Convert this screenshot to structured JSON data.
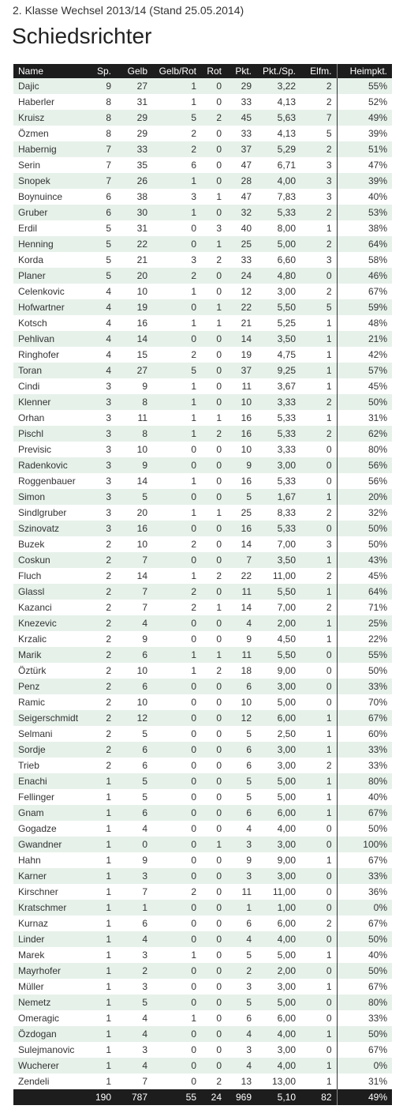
{
  "header": {
    "subtitle": "2. Klasse Wechsel 2013/14 (Stand 25.05.2014)",
    "title": "Schiedsrichter"
  },
  "table": {
    "columns": [
      "Name",
      "Sp.",
      "Gelb",
      "Gelb/Rot",
      "Rot",
      "Pkt.",
      "Pkt./Sp.",
      "Elfm.",
      "Heimpkt."
    ],
    "rows": [
      [
        "Dajic",
        "9",
        "27",
        "1",
        "0",
        "29",
        "3,22",
        "2",
        "55%"
      ],
      [
        "Haberler",
        "8",
        "31",
        "1",
        "0",
        "33",
        "4,13",
        "2",
        "52%"
      ],
      [
        "Kruisz",
        "8",
        "29",
        "5",
        "2",
        "45",
        "5,63",
        "7",
        "49%"
      ],
      [
        "Özmen",
        "8",
        "29",
        "2",
        "0",
        "33",
        "4,13",
        "5",
        "39%"
      ],
      [
        "Habernig",
        "7",
        "33",
        "2",
        "0",
        "37",
        "5,29",
        "2",
        "51%"
      ],
      [
        "Serin",
        "7",
        "35",
        "6",
        "0",
        "47",
        "6,71",
        "3",
        "47%"
      ],
      [
        "Snopek",
        "7",
        "26",
        "1",
        "0",
        "28",
        "4,00",
        "3",
        "39%"
      ],
      [
        "Boynuince",
        "6",
        "38",
        "3",
        "1",
        "47",
        "7,83",
        "3",
        "40%"
      ],
      [
        "Gruber",
        "6",
        "30",
        "1",
        "0",
        "32",
        "5,33",
        "2",
        "53%"
      ],
      [
        "Erdil",
        "5",
        "31",
        "0",
        "3",
        "40",
        "8,00",
        "1",
        "38%"
      ],
      [
        "Henning",
        "5",
        "22",
        "0",
        "1",
        "25",
        "5,00",
        "2",
        "64%"
      ],
      [
        "Korda",
        "5",
        "21",
        "3",
        "2",
        "33",
        "6,60",
        "3",
        "58%"
      ],
      [
        "Planer",
        "5",
        "20",
        "2",
        "0",
        "24",
        "4,80",
        "0",
        "46%"
      ],
      [
        "Celenkovic",
        "4",
        "10",
        "1",
        "0",
        "12",
        "3,00",
        "2",
        "67%"
      ],
      [
        "Hofwartner",
        "4",
        "19",
        "0",
        "1",
        "22",
        "5,50",
        "5",
        "59%"
      ],
      [
        "Kotsch",
        "4",
        "16",
        "1",
        "1",
        "21",
        "5,25",
        "1",
        "48%"
      ],
      [
        "Pehlivan",
        "4",
        "14",
        "0",
        "0",
        "14",
        "3,50",
        "1",
        "21%"
      ],
      [
        "Ringhofer",
        "4",
        "15",
        "2",
        "0",
        "19",
        "4,75",
        "1",
        "42%"
      ],
      [
        "Toran",
        "4",
        "27",
        "5",
        "0",
        "37",
        "9,25",
        "1",
        "57%"
      ],
      [
        "Cindi",
        "3",
        "9",
        "1",
        "0",
        "11",
        "3,67",
        "1",
        "45%"
      ],
      [
        "Klenner",
        "3",
        "8",
        "1",
        "0",
        "10",
        "3,33",
        "2",
        "50%"
      ],
      [
        "Orhan",
        "3",
        "11",
        "1",
        "1",
        "16",
        "5,33",
        "1",
        "31%"
      ],
      [
        "Pischl",
        "3",
        "8",
        "1",
        "2",
        "16",
        "5,33",
        "2",
        "62%"
      ],
      [
        "Previsic",
        "3",
        "10",
        "0",
        "0",
        "10",
        "3,33",
        "0",
        "80%"
      ],
      [
        "Radenkovic",
        "3",
        "9",
        "0",
        "0",
        "9",
        "3,00",
        "0",
        "56%"
      ],
      [
        "Roggenbauer",
        "3",
        "14",
        "1",
        "0",
        "16",
        "5,33",
        "0",
        "56%"
      ],
      [
        "Simon",
        "3",
        "5",
        "0",
        "0",
        "5",
        "1,67",
        "1",
        "20%"
      ],
      [
        "Sindlgruber",
        "3",
        "20",
        "1",
        "1",
        "25",
        "8,33",
        "2",
        "32%"
      ],
      [
        "Szinovatz",
        "3",
        "16",
        "0",
        "0",
        "16",
        "5,33",
        "0",
        "50%"
      ],
      [
        "Buzek",
        "2",
        "10",
        "2",
        "0",
        "14",
        "7,00",
        "3",
        "50%"
      ],
      [
        "Coskun",
        "2",
        "7",
        "0",
        "0",
        "7",
        "3,50",
        "1",
        "43%"
      ],
      [
        "Fluch",
        "2",
        "14",
        "1",
        "2",
        "22",
        "11,00",
        "2",
        "45%"
      ],
      [
        "Glassl",
        "2",
        "7",
        "2",
        "0",
        "11",
        "5,50",
        "1",
        "64%"
      ],
      [
        "Kazanci",
        "2",
        "7",
        "2",
        "1",
        "14",
        "7,00",
        "2",
        "71%"
      ],
      [
        "Knezevic",
        "2",
        "4",
        "0",
        "0",
        "4",
        "2,00",
        "1",
        "25%"
      ],
      [
        "Krzalic",
        "2",
        "9",
        "0",
        "0",
        "9",
        "4,50",
        "1",
        "22%"
      ],
      [
        "Marik",
        "2",
        "6",
        "1",
        "1",
        "11",
        "5,50",
        "0",
        "55%"
      ],
      [
        "Öztürk",
        "2",
        "10",
        "1",
        "2",
        "18",
        "9,00",
        "0",
        "50%"
      ],
      [
        "Penz",
        "2",
        "6",
        "0",
        "0",
        "6",
        "3,00",
        "0",
        "33%"
      ],
      [
        "Ramic",
        "2",
        "10",
        "0",
        "0",
        "10",
        "5,00",
        "0",
        "70%"
      ],
      [
        "Seigerschmidt",
        "2",
        "12",
        "0",
        "0",
        "12",
        "6,00",
        "1",
        "67%"
      ],
      [
        "Selmani",
        "2",
        "5",
        "0",
        "0",
        "5",
        "2,50",
        "1",
        "60%"
      ],
      [
        "Sordje",
        "2",
        "6",
        "0",
        "0",
        "6",
        "3,00",
        "1",
        "33%"
      ],
      [
        "Trieb",
        "2",
        "6",
        "0",
        "0",
        "6",
        "3,00",
        "2",
        "33%"
      ],
      [
        "Enachi",
        "1",
        "5",
        "0",
        "0",
        "5",
        "5,00",
        "1",
        "80%"
      ],
      [
        "Fellinger",
        "1",
        "5",
        "0",
        "0",
        "5",
        "5,00",
        "1",
        "40%"
      ],
      [
        "Gnam",
        "1",
        "6",
        "0",
        "0",
        "6",
        "6,00",
        "1",
        "67%"
      ],
      [
        "Gogadze",
        "1",
        "4",
        "0",
        "0",
        "4",
        "4,00",
        "0",
        "50%"
      ],
      [
        "Gwandner",
        "1",
        "0",
        "0",
        "1",
        "3",
        "3,00",
        "0",
        "100%"
      ],
      [
        "Hahn",
        "1",
        "9",
        "0",
        "0",
        "9",
        "9,00",
        "1",
        "67%"
      ],
      [
        "Karner",
        "1",
        "3",
        "0",
        "0",
        "3",
        "3,00",
        "0",
        "33%"
      ],
      [
        "Kirschner",
        "1",
        "7",
        "2",
        "0",
        "11",
        "11,00",
        "0",
        "36%"
      ],
      [
        "Kratschmer",
        "1",
        "1",
        "0",
        "0",
        "1",
        "1,00",
        "0",
        "0%"
      ],
      [
        "Kurnaz",
        "1",
        "6",
        "0",
        "0",
        "6",
        "6,00",
        "2",
        "67%"
      ],
      [
        "Linder",
        "1",
        "4",
        "0",
        "0",
        "4",
        "4,00",
        "0",
        "50%"
      ],
      [
        "Marek",
        "1",
        "3",
        "1",
        "0",
        "5",
        "5,00",
        "1",
        "40%"
      ],
      [
        "Mayrhofer",
        "1",
        "2",
        "0",
        "0",
        "2",
        "2,00",
        "0",
        "50%"
      ],
      [
        "Müller",
        "1",
        "3",
        "0",
        "0",
        "3",
        "3,00",
        "1",
        "67%"
      ],
      [
        "Nemetz",
        "1",
        "5",
        "0",
        "0",
        "5",
        "5,00",
        "0",
        "80%"
      ],
      [
        "Omeragic",
        "1",
        "4",
        "1",
        "0",
        "6",
        "6,00",
        "0",
        "33%"
      ],
      [
        "Özdogan",
        "1",
        "4",
        "0",
        "0",
        "4",
        "4,00",
        "1",
        "50%"
      ],
      [
        "Sulejmanovic",
        "1",
        "3",
        "0",
        "0",
        "3",
        "3,00",
        "0",
        "67%"
      ],
      [
        "Wucherer",
        "1",
        "4",
        "0",
        "0",
        "4",
        "4,00",
        "1",
        "0%"
      ],
      [
        "Zendeli",
        "1",
        "7",
        "0",
        "2",
        "13",
        "13,00",
        "1",
        "31%"
      ]
    ],
    "totals": [
      "",
      "190",
      "787",
      "55",
      "24",
      "969",
      "5,10",
      "82",
      "49%"
    ]
  }
}
